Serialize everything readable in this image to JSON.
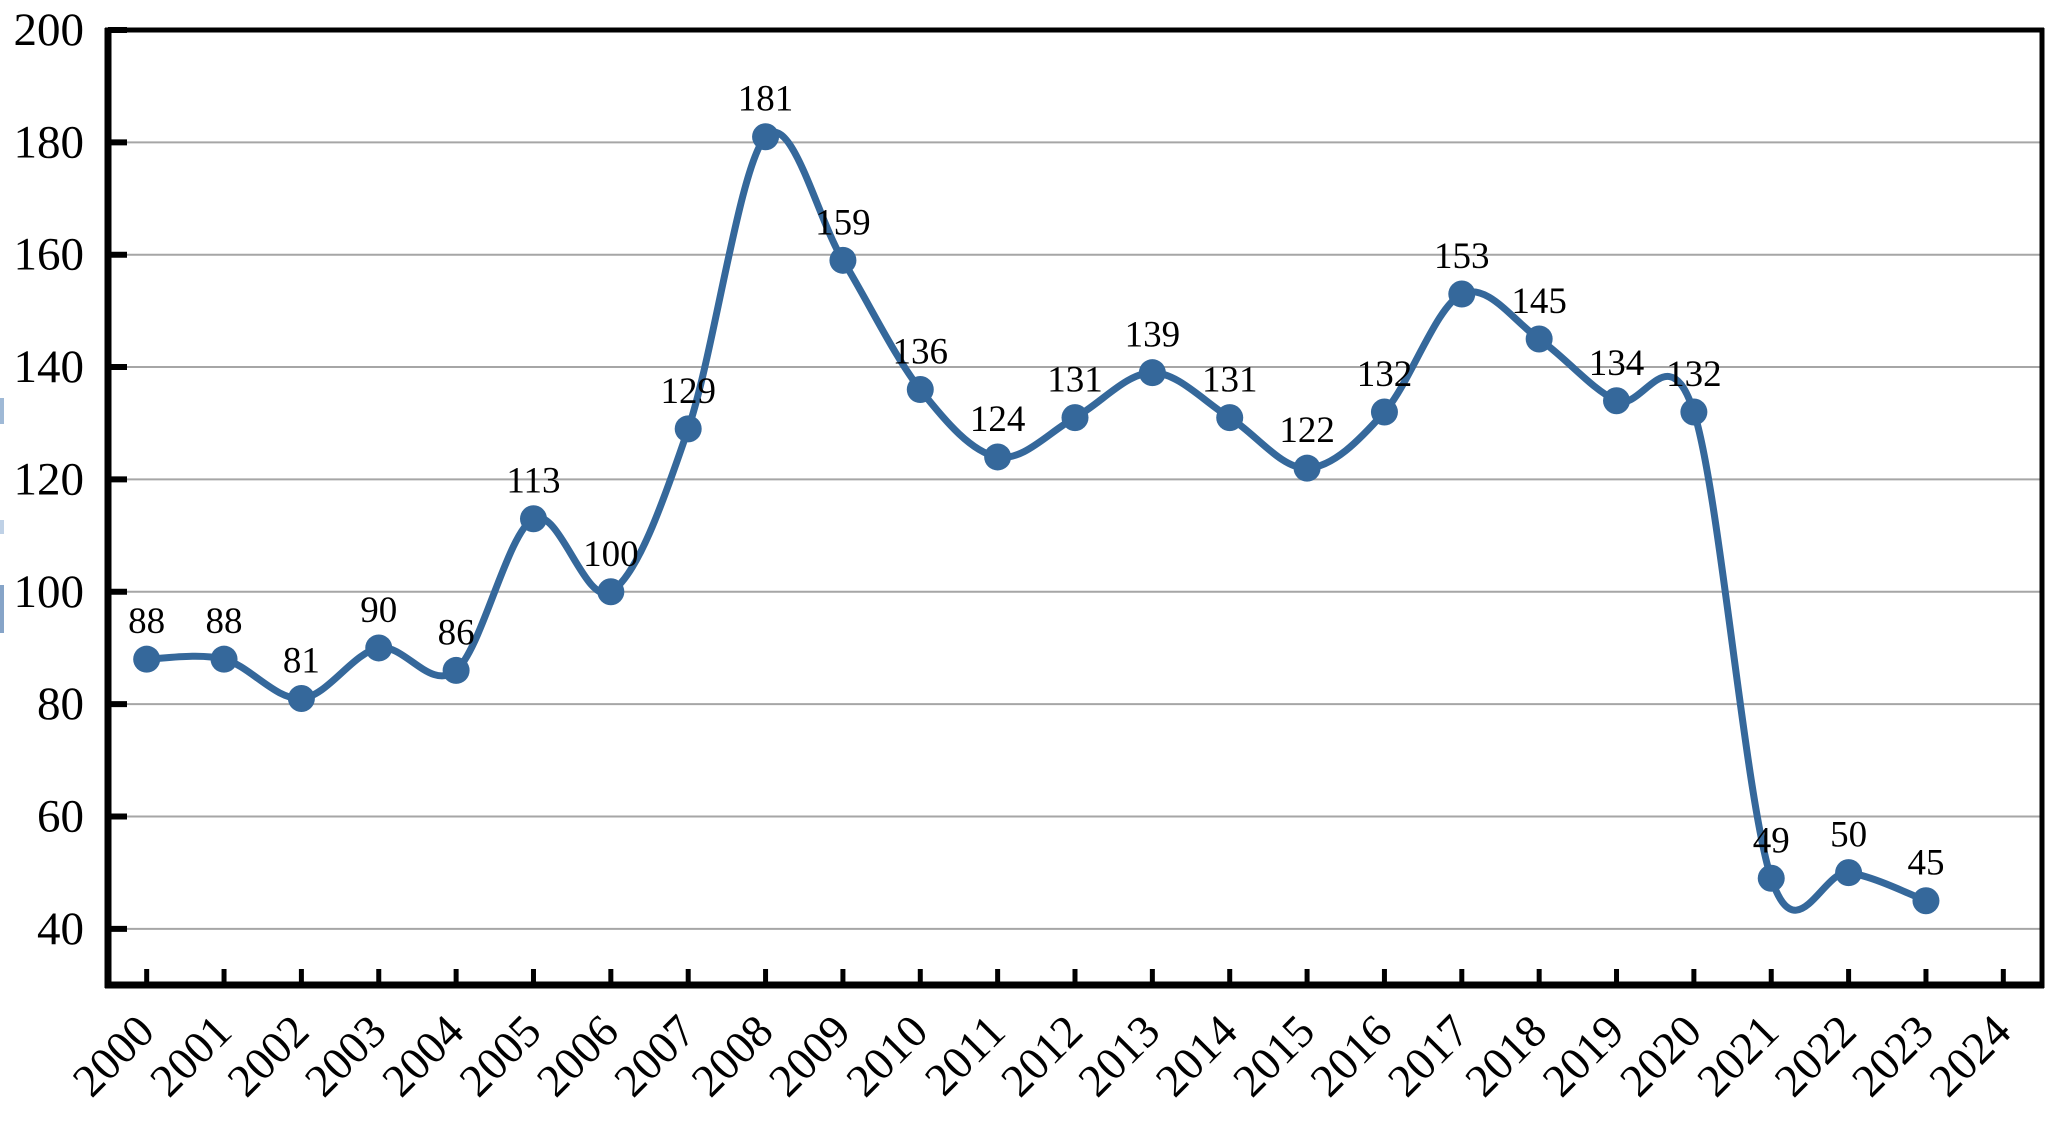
{
  "chart_data": {
    "type": "line",
    "title": "",
    "subtitle": "",
    "legend": "none",
    "grid": "horizontal",
    "categories": [
      "2000",
      "2001",
      "2002",
      "2003",
      "2004",
      "2005",
      "2006",
      "2007",
      "2008",
      "2009",
      "2010",
      "2011",
      "2012",
      "2013",
      "2014",
      "2015",
      "2016",
      "2017",
      "2018",
      "2019",
      "2020",
      "2021",
      "2022",
      "2023"
    ],
    "x_tick_labels": [
      "2000",
      "2001",
      "2002",
      "2003",
      "2004",
      "2005",
      "2006",
      "2007",
      "2008",
      "2009",
      "2010",
      "2011",
      "2012",
      "2013",
      "2014",
      "2015",
      "2016",
      "2017",
      "2018",
      "2019",
      "2020",
      "2021",
      "2022",
      "2023",
      "2024"
    ],
    "series": [
      {
        "name": "annual-count",
        "values": [
          88,
          88,
          81,
          90,
          86,
          113,
          100,
          129,
          181,
          159,
          136,
          124,
          131,
          139,
          131,
          122,
          132,
          153,
          145,
          134,
          132,
          49,
          50,
          45
        ],
        "point_labels": [
          "88",
          "88",
          "81",
          "90",
          "86",
          "113",
          "100",
          "129",
          "181",
          "159",
          "136",
          "124",
          "131",
          "139",
          "131",
          "122",
          "132",
          "153",
          "145",
          "134",
          "132",
          "49",
          "50",
          "45"
        ]
      }
    ],
    "xlabel": "",
    "ylabel": "",
    "ylim": [
      30,
      200
    ],
    "y_ticks": [
      40,
      60,
      80,
      100,
      120,
      140,
      160,
      180,
      200
    ],
    "colors": {
      "line": "#35689B",
      "marker": "#35689B",
      "grid": "#A6A6A6",
      "axis": "#000000",
      "text": "#000000",
      "background": "#FFFFFF"
    },
    "marker_shape": "circle",
    "line_style": "smooth"
  }
}
